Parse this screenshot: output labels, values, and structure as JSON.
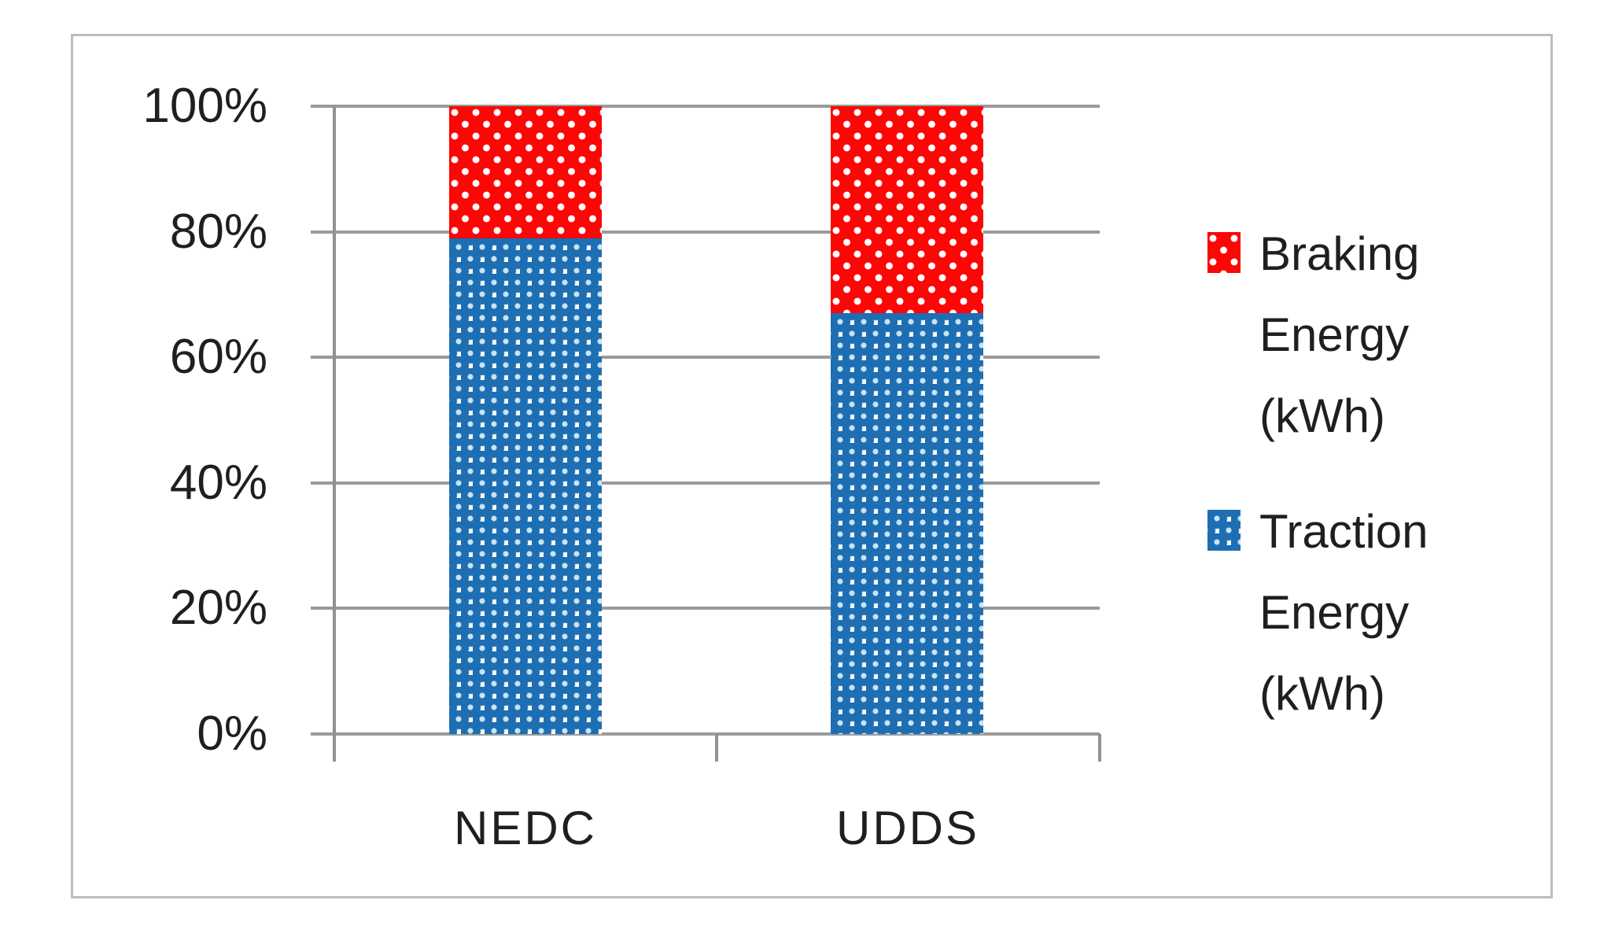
{
  "chart_data": {
    "type": "bar",
    "subtype": "stacked-100-percent",
    "title": "",
    "xlabel": "",
    "ylabel": "",
    "categories": [
      "NEDC",
      "UDDS"
    ],
    "series": [
      {
        "name": "Braking Energy (kWh)",
        "legend_lines": [
          "Braking",
          "Energy",
          "(kWh)"
        ],
        "values_pct": [
          21,
          33
        ],
        "color": "#fc0606",
        "pattern": "red-with-white-dots"
      },
      {
        "name": "Traction Energy (kWh)",
        "legend_lines": [
          "Traction",
          "Energy",
          "(kWh)"
        ],
        "values_pct": [
          79,
          67
        ],
        "color": "#1d6eb2",
        "pattern": "blue-spheres-on-white"
      }
    ],
    "ytick_labels": [
      "100%",
      "80%",
      "60%",
      "40%",
      "20%",
      "0%"
    ],
    "ylim": [
      0,
      100
    ],
    "grid": true,
    "legend_position": "right"
  },
  "colors": {
    "gridline": "#9a9a9a",
    "axis": "#919191",
    "outer_border": "#bdbdbd",
    "text": "#1f1f1f",
    "background": "#ffffff"
  }
}
